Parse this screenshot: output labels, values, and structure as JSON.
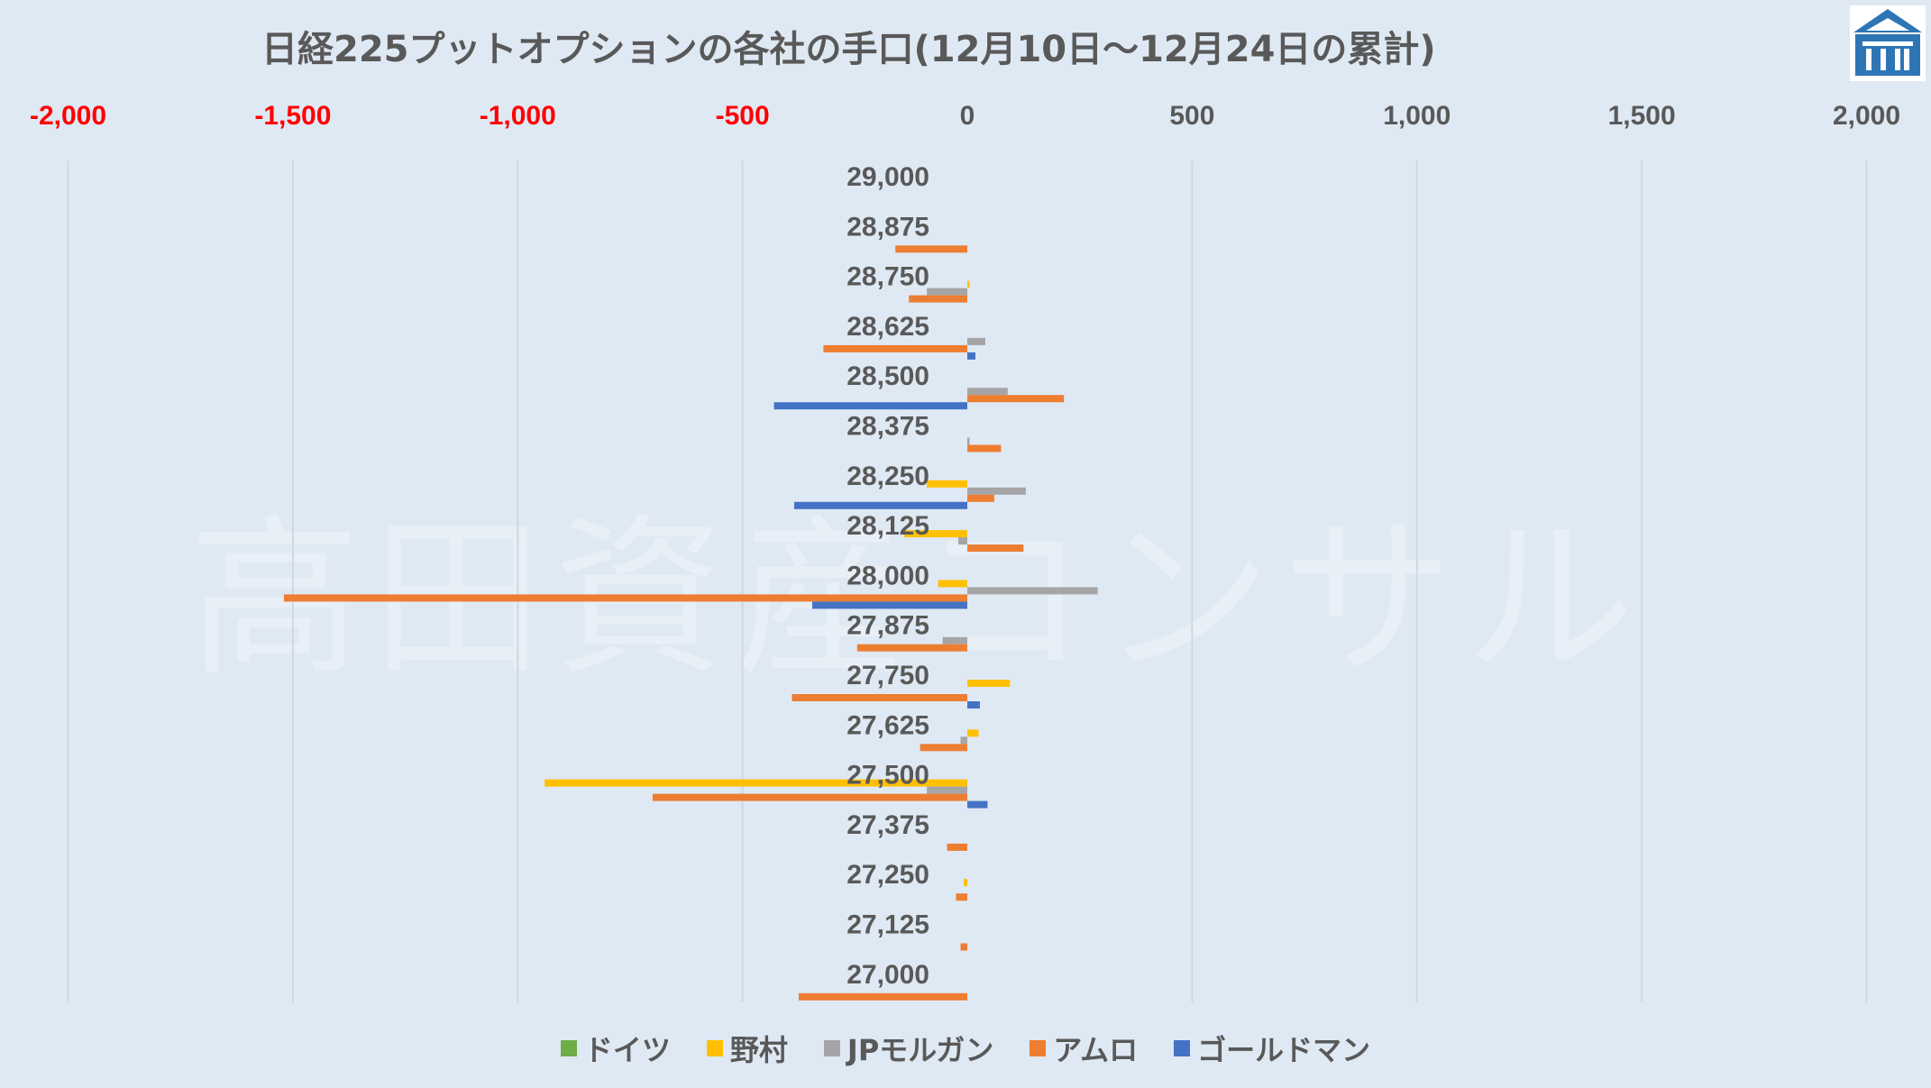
{
  "title": "日経225プットオプションの各社の手口(12月10日～12月24日の累計)",
  "watermark": "高田資産コンサル",
  "chart_data": {
    "type": "bar",
    "orientation": "horizontal",
    "categories": [
      "29,000",
      "28,875",
      "28,750",
      "28,625",
      "28,500",
      "28,375",
      "28,250",
      "28,125",
      "28,000",
      "27,875",
      "27,750",
      "27,625",
      "27,500",
      "27,375",
      "27,250",
      "27,125",
      "27,000"
    ],
    "xlim": [
      -2000,
      2000
    ],
    "xticks": [
      -2000,
      -1500,
      -1000,
      -500,
      0,
      500,
      1000,
      1500,
      2000
    ],
    "xtick_labels": [
      "-2,000",
      "-1,500",
      "-1,000",
      "-500",
      "0",
      "500",
      "1,000",
      "1,500",
      "2,000"
    ],
    "negative_tick_color": "#ff0000",
    "positive_tick_color": "#595959",
    "legend_position": "bottom",
    "grid": "vertical",
    "series": [
      {
        "name": "ドイツ",
        "color": "#70ad47",
        "values": [
          0,
          0,
          0,
          0,
          0,
          0,
          0,
          0,
          0,
          0,
          0,
          0,
          0,
          0,
          0,
          0,
          0
        ]
      },
      {
        "name": "野村",
        "color": "#ffc000",
        "values": [
          0,
          0,
          5,
          0,
          0,
          0,
          -90,
          -140,
          -65,
          0,
          95,
          25,
          -940,
          0,
          -8,
          0,
          0
        ]
      },
      {
        "name": "JPモルガン",
        "color": "#a5a5a5",
        "values": [
          0,
          0,
          -90,
          40,
          90,
          5,
          130,
          -20,
          290,
          -55,
          0,
          -15,
          -90,
          0,
          0,
          0,
          0
        ]
      },
      {
        "name": "アムロ",
        "color": "#ed7d31",
        "values": [
          0,
          -160,
          -130,
          -320,
          215,
          75,
          60,
          125,
          -1520,
          -245,
          -390,
          -105,
          -700,
          -45,
          -25,
          -15,
          -375
        ]
      },
      {
        "name": "ゴールドマン",
        "color": "#4472c4",
        "values": [
          0,
          0,
          0,
          18,
          -430,
          0,
          -385,
          0,
          -345,
          0,
          28,
          0,
          45,
          0,
          0,
          0,
          0
        ]
      }
    ]
  }
}
